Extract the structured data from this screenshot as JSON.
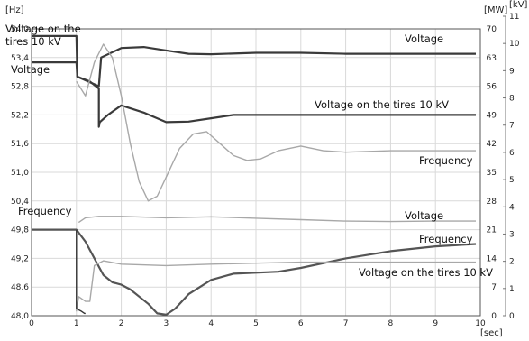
{
  "chart_data": {
    "type": "line",
    "title": "",
    "xlabel": "[sec]",
    "units": {
      "left": "[Hz]",
      "mw": "[MW]",
      "kv": "[kV]"
    },
    "xlim": [
      0,
      10
    ],
    "x_ticks": [
      "0",
      "1",
      "2",
      "3",
      "4",
      "5",
      "6",
      "7",
      "8",
      "9",
      "10"
    ],
    "ylim_hz": [
      48.0,
      54.0
    ],
    "y_ticks_hz": [
      "48,0",
      "48,6",
      "49,2",
      "49,8",
      "50,4",
      "51,0",
      "51,6",
      "52,2",
      "52,8",
      "53,4",
      "54,0"
    ],
    "y_ticks_mw": [
      "0",
      "7",
      "14",
      "21",
      "28",
      "35",
      "42",
      "49",
      "56",
      "63",
      "70"
    ],
    "y_ticks_kv": [
      "0",
      "1",
      "2",
      "3",
      "4",
      "5",
      "6",
      "7",
      "8",
      "9",
      "10",
      "11"
    ],
    "grid": true,
    "annotations": {
      "top_tires": "Voltage on the\ntires 10 kV",
      "top_voltage_left": "Voltage",
      "top_voltage_right": "Voltage",
      "top_tires_right": "Voltage on the tires 10 kV",
      "top_frequency": "Frequency",
      "bottom_frequency_left": "Frequency",
      "bottom_voltage": "Voltage",
      "bottom_frequency": "Frequency",
      "bottom_tires": "Voltage on the tires 10 kV"
    },
    "series": [
      {
        "id": "top_voltage",
        "color": "#3a3a3a",
        "width": 2.2,
        "x": [
          0,
          1,
          1.02,
          1.5,
          1.55,
          2,
          2.5,
          3,
          3.5,
          4,
          5,
          6,
          7,
          8,
          9,
          9.9
        ],
        "y": [
          53.3,
          53.3,
          53.0,
          52.8,
          53.4,
          53.6,
          53.62,
          53.55,
          53.48,
          53.47,
          53.5,
          53.5,
          53.48,
          53.48,
          53.48,
          53.48
        ]
      },
      {
        "id": "top_tires",
        "color": "#3a3a3a",
        "width": 2.2,
        "x": [
          0,
          0.98,
          1.0,
          1.02,
          1.3,
          1.5,
          1.5,
          1.52,
          1.7,
          2.0,
          2.5,
          3.0,
          3.5,
          4.0,
          4.5,
          5.0,
          6.0,
          7.0,
          8.0,
          9.0,
          9.9
        ],
        "y": [
          53.85,
          53.85,
          53.85,
          53.0,
          52.9,
          52.75,
          51.95,
          52.05,
          52.2,
          52.4,
          52.25,
          52.05,
          52.06,
          52.13,
          52.2,
          52.2,
          52.2,
          52.2,
          52.2,
          52.2,
          52.2
        ]
      },
      {
        "id": "top_frequency",
        "color": "#a8a8a8",
        "width": 1.4,
        "x": [
          1.0,
          1.2,
          1.4,
          1.6,
          1.8,
          2.0,
          2.2,
          2.4,
          2.6,
          2.8,
          3.0,
          3.3,
          3.6,
          3.9,
          4.2,
          4.5,
          4.8,
          5.1,
          5.5,
          6.0,
          6.5,
          7.0,
          8.0,
          9.0,
          9.9
        ],
        "y": [
          52.9,
          52.6,
          53.3,
          53.68,
          53.4,
          52.6,
          51.6,
          50.8,
          50.4,
          50.5,
          50.9,
          51.5,
          51.8,
          51.85,
          51.6,
          51.35,
          51.25,
          51.28,
          51.45,
          51.55,
          51.45,
          51.42,
          51.45,
          51.45,
          51.45
        ]
      },
      {
        "id": "bottom_voltage",
        "color": "#a8a8a8",
        "width": 1.4,
        "x": [
          1.05,
          1.2,
          1.5,
          2,
          3,
          4,
          5,
          6,
          7,
          8,
          9,
          9.9
        ],
        "y": [
          49.95,
          50.05,
          50.08,
          50.08,
          50.05,
          50.07,
          50.04,
          50.01,
          49.98,
          49.97,
          49.98,
          49.98
        ]
      },
      {
        "id": "bottom_frequency",
        "color": "#555555",
        "width": 2.2,
        "x": [
          0,
          1.0,
          1.2,
          1.4,
          1.6,
          1.8,
          2.0,
          2.2,
          2.4,
          2.6,
          2.8,
          3.0,
          3.2,
          3.5,
          4.0,
          4.5,
          5.0,
          5.5,
          6.0,
          7.0,
          8.0,
          9.0,
          9.9
        ],
        "y": [
          49.8,
          49.8,
          49.55,
          49.2,
          48.85,
          48.7,
          48.65,
          48.55,
          48.4,
          48.25,
          48.05,
          48.02,
          48.15,
          48.45,
          48.75,
          48.88,
          48.9,
          48.92,
          49.0,
          49.2,
          49.35,
          49.45,
          49.5
        ]
      },
      {
        "id": "bottom_tires",
        "color": "#a8a8a8",
        "width": 1.4,
        "x": [
          1.0,
          1.0,
          1.05,
          1.2,
          1.3,
          1.4,
          1.6,
          2.0,
          3.0,
          4.0,
          5.0,
          6.0,
          7.0,
          8.0,
          9.0,
          9.9
        ],
        "y": [
          49.8,
          48.1,
          48.4,
          48.3,
          48.3,
          49.05,
          49.15,
          49.08,
          49.05,
          49.08,
          49.1,
          49.12,
          49.12,
          49.12,
          49.12,
          49.12
        ]
      },
      {
        "id": "bottom_black_drop",
        "color": "#333333",
        "width": 1.4,
        "x": [
          1.0,
          1.0,
          1.1,
          1.18,
          1.2
        ],
        "y": [
          49.8,
          48.15,
          48.1,
          48.05,
          48.05
        ]
      }
    ]
  }
}
